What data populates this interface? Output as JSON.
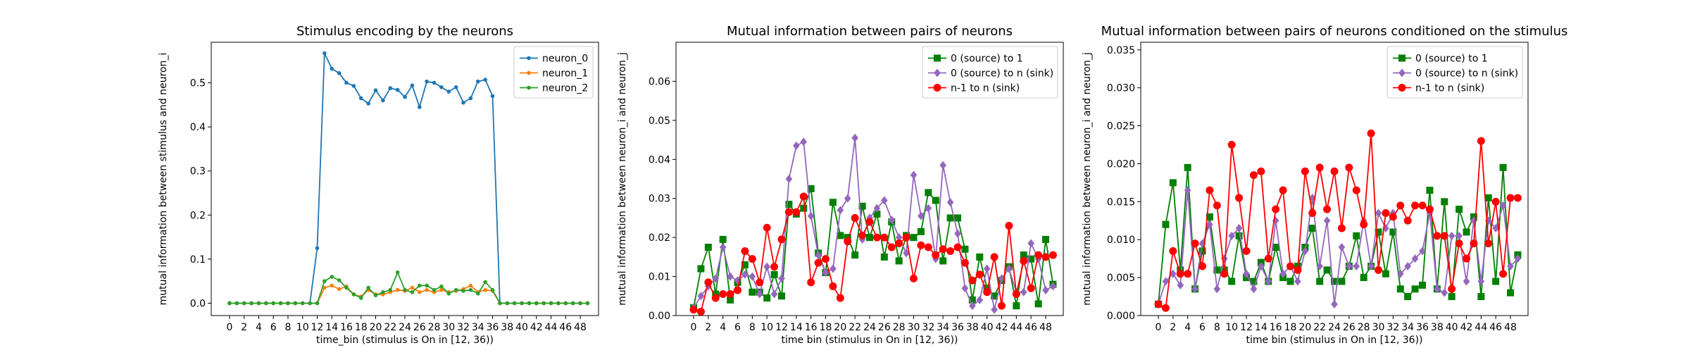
{
  "colors": {
    "blue": "#1f77b4",
    "orange": "#ff7f0e",
    "green_tab": "#2ca02c",
    "green": "#008000",
    "purple": "#9467bd",
    "red": "#ff0000"
  },
  "chart_data": [
    {
      "type": "line",
      "title": "Stimulus encoding by the neurons",
      "xlabel": "time_bin (stimulus is On in [12, 36))",
      "ylabel": "mutual information between stimulus and neuron_i",
      "xlim": [
        -2.5,
        50.5
      ],
      "ylim": [
        -0.028,
        0.592
      ],
      "xticks": [
        0,
        2,
        4,
        6,
        8,
        10,
        12,
        14,
        16,
        18,
        20,
        22,
        24,
        26,
        28,
        30,
        32,
        34,
        36,
        38,
        40,
        42,
        44,
        46,
        48
      ],
      "yticks": [
        0.0,
        0.1,
        0.2,
        0.3,
        0.4,
        0.5
      ],
      "ytick_labels": [
        "0.0",
        "0.1",
        "0.2",
        "0.3",
        "0.4",
        "0.5"
      ],
      "legend_position": "top-right",
      "x": [
        0,
        1,
        2,
        3,
        4,
        5,
        6,
        7,
        8,
        9,
        10,
        11,
        12,
        13,
        14,
        15,
        16,
        17,
        18,
        19,
        20,
        21,
        22,
        23,
        24,
        25,
        26,
        27,
        28,
        29,
        30,
        31,
        32,
        33,
        34,
        35,
        36,
        37,
        38,
        39,
        40,
        41,
        42,
        43,
        44,
        45,
        46,
        47,
        48,
        49
      ],
      "series": [
        {
          "name": "neuron_0",
          "color": "#1f77b4",
          "marker": "dot",
          "values": [
            0,
            0,
            0,
            0,
            0,
            0,
            0,
            0,
            0,
            0,
            0,
            0,
            0.125,
            0.567,
            0.532,
            0.522,
            0.5,
            0.493,
            0.465,
            0.453,
            0.483,
            0.46,
            0.488,
            0.484,
            0.468,
            0.494,
            0.445,
            0.503,
            0.5,
            0.49,
            0.48,
            0.49,
            0.455,
            0.465,
            0.503,
            0.507,
            0.47,
            0,
            0,
            0,
            0,
            0,
            0,
            0,
            0,
            0,
            0,
            0,
            0,
            0
          ]
        },
        {
          "name": "neuron_1",
          "color": "#ff7f0e",
          "marker": "dot",
          "values": [
            0,
            0,
            0,
            0,
            0,
            0,
            0,
            0,
            0,
            0,
            0,
            0,
            0,
            0.035,
            0.04,
            0.032,
            0.038,
            0.02,
            0.015,
            0.03,
            0.02,
            0.02,
            0.025,
            0.03,
            0.028,
            0.035,
            0.025,
            0.03,
            0.025,
            0.03,
            0.025,
            0.028,
            0.032,
            0.04,
            0.025,
            0.03,
            0.028,
            0,
            0,
            0,
            0,
            0,
            0,
            0,
            0,
            0,
            0,
            0,
            0,
            0
          ]
        },
        {
          "name": "neuron_2",
          "color": "#2ca02c",
          "marker": "dot",
          "values": [
            0,
            0,
            0,
            0,
            0,
            0,
            0,
            0,
            0,
            0,
            0,
            0,
            0,
            0.05,
            0.06,
            0.052,
            0.035,
            0.02,
            0.012,
            0.035,
            0.018,
            0.025,
            0.03,
            0.07,
            0.03,
            0.025,
            0.04,
            0.04,
            0.03,
            0.038,
            0.022,
            0.03,
            0.028,
            0.03,
            0.022,
            0.048,
            0.03,
            0,
            0,
            0,
            0,
            0,
            0,
            0,
            0,
            0,
            0,
            0,
            0,
            0
          ]
        }
      ]
    },
    {
      "type": "line",
      "title": "Mutual information between pairs of neurons",
      "xlabel": "time bin (stimulus in On in [12, 36))",
      "ylabel": "mutual information between neuron_i and neuron_j",
      "xlim": [
        -2.4,
        50.4
      ],
      "ylim": [
        0.0,
        0.07
      ],
      "xticks": [
        0,
        2,
        4,
        6,
        8,
        10,
        12,
        14,
        16,
        18,
        20,
        22,
        24,
        26,
        28,
        30,
        32,
        34,
        36,
        38,
        40,
        42,
        44,
        46,
        48
      ],
      "yticks": [
        0.0,
        0.01,
        0.02,
        0.03,
        0.04,
        0.05,
        0.06
      ],
      "ytick_labels": [
        "0.00",
        "0.01",
        "0.02",
        "0.03",
        "0.04",
        "0.05",
        "0.06"
      ],
      "legend_position": "top-right",
      "x": [
        0,
        1,
        2,
        3,
        4,
        5,
        6,
        7,
        8,
        9,
        10,
        11,
        12,
        13,
        14,
        15,
        16,
        17,
        18,
        19,
        20,
        21,
        22,
        23,
        24,
        25,
        26,
        27,
        28,
        29,
        30,
        31,
        32,
        33,
        34,
        35,
        36,
        37,
        38,
        39,
        40,
        41,
        42,
        43,
        44,
        45,
        46,
        47,
        48,
        49
      ],
      "series": [
        {
          "name": "0 (source) to 1",
          "color": "#008000",
          "marker": "square",
          "values": [
            0.002,
            0.012,
            0.0175,
            0.0055,
            0.0195,
            0.004,
            0.0085,
            0.013,
            0.006,
            0.006,
            0.0045,
            0.0105,
            0.005,
            0.0285,
            0.026,
            0.0275,
            0.0325,
            0.016,
            0.011,
            0.029,
            0.0205,
            0.02,
            0.0155,
            0.028,
            0.02,
            0.026,
            0.015,
            0.024,
            0.014,
            0.0205,
            0.02,
            0.0215,
            0.0315,
            0.0295,
            0.014,
            0.025,
            0.025,
            0.017,
            0.004,
            0.015,
            0.007,
            0.005,
            0.009,
            0.0125,
            0.0025,
            0.0155,
            0.0145,
            0.003,
            0.0195,
            0.008
          ]
        },
        {
          "name": "0 (source) to n (sink)",
          "color": "#9467bd",
          "marker": "diamond",
          "values": [
            0.002,
            0.005,
            0.0075,
            0.0095,
            0.0175,
            0.01,
            0.009,
            0.0105,
            0.01,
            0.0055,
            0.0125,
            0.0055,
            0.0095,
            0.035,
            0.0435,
            0.0445,
            0.0255,
            0.0155,
            0.011,
            0.012,
            0.027,
            0.03,
            0.0455,
            0.0195,
            0.025,
            0.0275,
            0.0295,
            0.0245,
            0.02,
            0.016,
            0.036,
            0.0255,
            0.0275,
            0.0145,
            0.0385,
            0.029,
            0.021,
            0.007,
            0.0025,
            0.004,
            0.012,
            0.0015,
            0.0095,
            0.012,
            0.006,
            0.006,
            0.0185,
            0.0145,
            0.0065,
            0.0075
          ]
        },
        {
          "name": "n-1 to n (sink)",
          "color": "#ff0000",
          "marker": "circle",
          "values": [
            0.0015,
            0.001,
            0.0085,
            0.0045,
            0.0055,
            0.0055,
            0.0065,
            0.0165,
            0.0145,
            0.0085,
            0.0225,
            0.0125,
            0.0195,
            0.0265,
            0.0265,
            0.0305,
            0.0085,
            0.0135,
            0.0145,
            0.0075,
            0.0045,
            0.019,
            0.025,
            0.0205,
            0.024,
            0.02,
            0.02,
            0.0175,
            0.0185,
            0.02,
            0.0095,
            0.018,
            0.0175,
            0.0155,
            0.017,
            0.0165,
            0.0175,
            0.0135,
            0.009,
            0.0105,
            0.006,
            0.015,
            0.0025,
            0.023,
            0.0055,
            0.014,
            0.007,
            0.0155,
            0.015,
            0.0155
          ]
        }
      ]
    },
    {
      "type": "line",
      "title": "Mutual information between pairs of neurons conditioned on the stimulus",
      "xlabel": "time bin (stimulus in On in [12, 36))",
      "ylabel": "mutual information between neuron_i and neuron_j",
      "xlim": [
        -2.4,
        50.4
      ],
      "ylim": [
        0.0,
        0.036
      ],
      "xticks": [
        0,
        2,
        4,
        6,
        8,
        10,
        12,
        14,
        16,
        18,
        20,
        22,
        24,
        26,
        28,
        30,
        32,
        34,
        36,
        38,
        40,
        42,
        44,
        46,
        48
      ],
      "yticks": [
        0.0,
        0.005,
        0.01,
        0.015,
        0.02,
        0.025,
        0.03,
        0.035
      ],
      "ytick_labels": [
        "0.000",
        "0.005",
        "0.010",
        "0.015",
        "0.020",
        "0.025",
        "0.030",
        "0.035"
      ],
      "legend_position": "top-right",
      "x": [
        0,
        1,
        2,
        3,
        4,
        5,
        6,
        7,
        8,
        9,
        10,
        11,
        12,
        13,
        14,
        15,
        16,
        17,
        18,
        19,
        20,
        21,
        22,
        23,
        24,
        25,
        26,
        27,
        28,
        29,
        30,
        31,
        32,
        33,
        34,
        35,
        36,
        37,
        38,
        39,
        40,
        41,
        42,
        43,
        44,
        45,
        46,
        47,
        48,
        49
      ],
      "series": [
        {
          "name": "0 (source) to 1",
          "color": "#008000",
          "marker": "square",
          "values": [
            0.0015,
            0.012,
            0.0175,
            0.006,
            0.0195,
            0.0035,
            0.0085,
            0.013,
            0.006,
            0.006,
            0.0045,
            0.0105,
            0.005,
            0.0045,
            0.007,
            0.0045,
            0.009,
            0.005,
            0.0045,
            0.0065,
            0.009,
            0.0115,
            0.0045,
            0.006,
            0.0045,
            0.0045,
            0.0065,
            0.0105,
            0.005,
            0.0065,
            0.011,
            0.0055,
            0.011,
            0.0035,
            0.0025,
            0.0035,
            0.004,
            0.0165,
            0.0035,
            0.015,
            0.0025,
            0.014,
            0.011,
            0.013,
            0.0025,
            0.0155,
            0.0045,
            0.0195,
            0.003,
            0.008
          ]
        },
        {
          "name": "0 (source) to n (sink)",
          "color": "#9467bd",
          "marker": "diamond",
          "values": [
            0.0015,
            0.0045,
            0.0055,
            0.004,
            0.0165,
            0.0035,
            0.0095,
            0.012,
            0.0035,
            0.0075,
            0.0105,
            0.0115,
            0.0055,
            0.0035,
            0.0065,
            0.0045,
            0.0125,
            0.0055,
            0.0065,
            0.0045,
            0.0085,
            0.0155,
            0.0065,
            0.0125,
            0.0015,
            0.009,
            0.0065,
            0.0065,
            0.0125,
            0.0065,
            0.0135,
            0.0115,
            0.0135,
            0.0055,
            0.0065,
            0.0075,
            0.0085,
            0.0135,
            0.0035,
            0.003,
            0.0105,
            0.0105,
            0.0045,
            0.0125,
            0.0045,
            0.0125,
            0.0115,
            0.0145,
            0.0065,
            0.0075
          ]
        },
        {
          "name": "n-1 to n (sink)",
          "color": "#ff0000",
          "marker": "circle",
          "values": [
            0.0015,
            0.001,
            0.0085,
            0.0055,
            0.0055,
            0.0095,
            0.0065,
            0.0165,
            0.0145,
            0.0055,
            0.0225,
            0.0155,
            0.0085,
            0.0185,
            0.019,
            0.0075,
            0.014,
            0.0165,
            0.0065,
            0.006,
            0.019,
            0.0135,
            0.0195,
            0.014,
            0.019,
            0.0115,
            0.0195,
            0.0165,
            0.012,
            0.024,
            0.006,
            0.0135,
            0.013,
            0.0145,
            0.0125,
            0.0145,
            0.0145,
            0.014,
            0.0105,
            0.0105,
            0.0035,
            0.0095,
            0.0075,
            0.0095,
            0.023,
            0.0095,
            0.015,
            0.0055,
            0.0155,
            0.0155
          ]
        }
      ]
    }
  ]
}
